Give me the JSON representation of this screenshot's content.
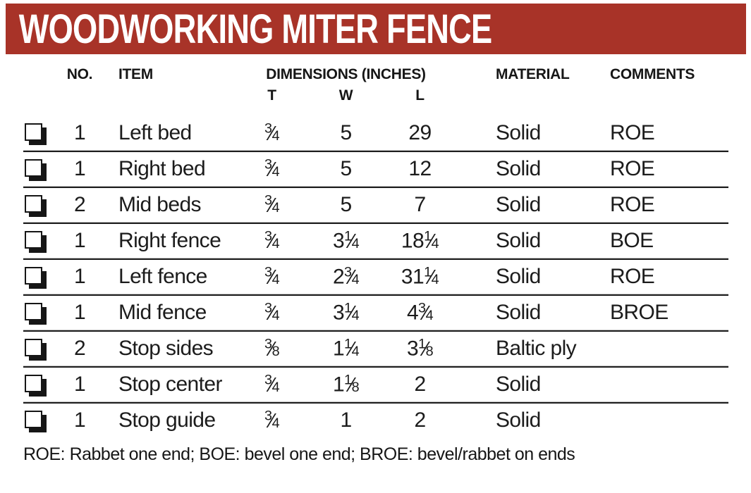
{
  "banner": {
    "title": "WOODWORKING MITER FENCE",
    "bg_color": "#a83328",
    "text_color": "#ffffff"
  },
  "table": {
    "headers": {
      "no": "NO.",
      "item": "ITEM",
      "dimensions": "DIMENSIONS (INCHES)",
      "t": "T",
      "w": "W",
      "l": "L",
      "material": "MATERIAL",
      "comments": "COMMENTS"
    },
    "rows": [
      {
        "no": "1",
        "item": "Left bed",
        "t": "3/4",
        "w": "5",
        "l": "29",
        "material": "Solid",
        "comments": "ROE"
      },
      {
        "no": "1",
        "item": "Right bed",
        "t": "3/4",
        "w": "5",
        "l": "12",
        "material": "Solid",
        "comments": "ROE"
      },
      {
        "no": "2",
        "item": "Mid beds",
        "t": "3/4",
        "w": "5",
        "l": "7",
        "material": "Solid",
        "comments": "ROE"
      },
      {
        "no": "1",
        "item": "Right fence",
        "t": "3/4",
        "w": "3 1/4",
        "l": "18 1/4",
        "material": "Solid",
        "comments": "BOE"
      },
      {
        "no": "1",
        "item": "Left fence",
        "t": "3/4",
        "w": "2 3/4",
        "l": "31 1/4",
        "material": "Solid",
        "comments": "ROE"
      },
      {
        "no": "1",
        "item": "Mid fence",
        "t": "3/4",
        "w": "3 1/4",
        "l": "4 3/4",
        "material": "Solid",
        "comments": "BROE"
      },
      {
        "no": "2",
        "item": "Stop sides",
        "t": "3/8",
        "w": "1 1/4",
        "l": "3 1/8",
        "material": "Baltic ply",
        "comments": ""
      },
      {
        "no": "1",
        "item": "Stop center",
        "t": "3/4",
        "w": "1 1/8",
        "l": "2",
        "material": "Solid",
        "comments": ""
      },
      {
        "no": "1",
        "item": "Stop guide",
        "t": "3/4",
        "w": "1",
        "l": "2",
        "material": "Solid",
        "comments": ""
      }
    ]
  },
  "footnote": "ROE: Rabbet one end; BOE: bevel one end; BROE: bevel/rabbet on ends",
  "icons": {
    "checkbox": "ballot-box-drop-shadow-icon"
  }
}
